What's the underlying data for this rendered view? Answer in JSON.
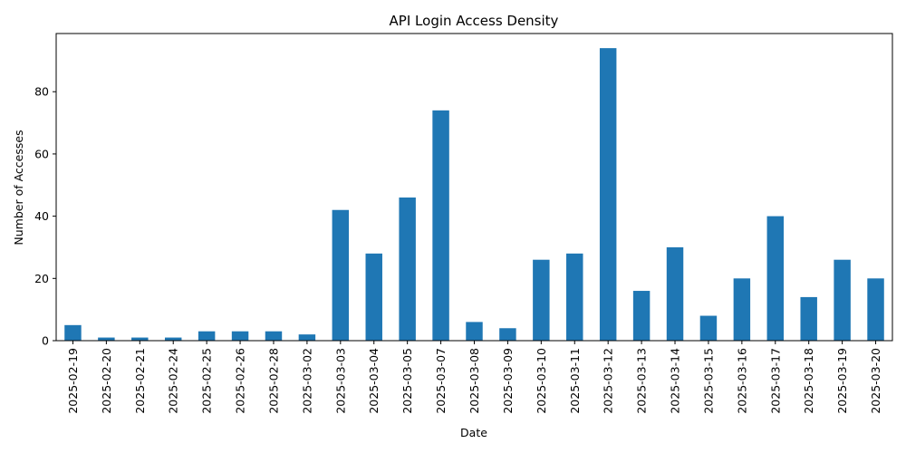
{
  "chart_data": {
    "type": "bar",
    "title": "API Login Access Density",
    "xlabel": "Date",
    "ylabel": "Number of Accesses",
    "categories": [
      "2025-02-19",
      "2025-02-20",
      "2025-02-21",
      "2025-02-24",
      "2025-02-25",
      "2025-02-26",
      "2025-02-28",
      "2025-03-02",
      "2025-03-03",
      "2025-03-04",
      "2025-03-05",
      "2025-03-07",
      "2025-03-08",
      "2025-03-09",
      "2025-03-10",
      "2025-03-11",
      "2025-03-12",
      "2025-03-13",
      "2025-03-14",
      "2025-03-15",
      "2025-03-16",
      "2025-03-17",
      "2025-03-18",
      "2025-03-19",
      "2025-03-20"
    ],
    "values": [
      5,
      1,
      1,
      1,
      3,
      3,
      3,
      2,
      42,
      28,
      46,
      74,
      6,
      4,
      26,
      28,
      94,
      16,
      30,
      8,
      20,
      40,
      14,
      26,
      20
    ],
    "ylim": [
      0,
      98.7
    ],
    "yticks": [
      0,
      20,
      40,
      60,
      80
    ],
    "grid": false,
    "legend": "none",
    "bar_color": "#1f77b4"
  }
}
